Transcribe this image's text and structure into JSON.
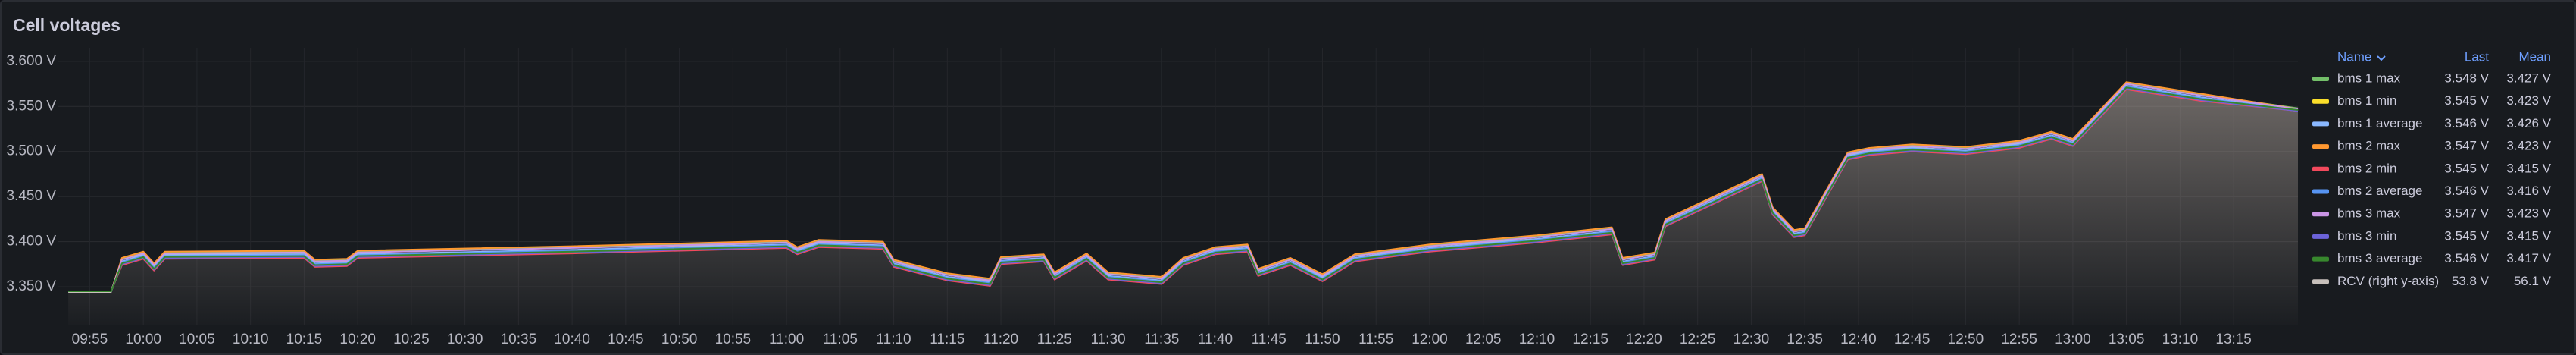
{
  "chart_data": {
    "type": "line",
    "title": "Cell voltages",
    "grid": true,
    "legend": "right",
    "legend_columns": [
      "Name",
      "Last",
      "Mean"
    ],
    "xlim": [
      "09:52",
      "13:21"
    ],
    "xticks": [
      "09:55",
      "10:00",
      "10:05",
      "10:10",
      "10:15",
      "10:20",
      "10:25",
      "10:30",
      "10:35",
      "10:40",
      "10:45",
      "10:50",
      "10:55",
      "11:00",
      "11:05",
      "11:10",
      "11:15",
      "11:20",
      "11:25",
      "11:30",
      "11:35",
      "11:40",
      "11:45",
      "11:50",
      "11:55",
      "12:00",
      "12:05",
      "12:10",
      "12:15",
      "12:20",
      "12:25",
      "12:30",
      "12:35",
      "12:40",
      "12:45",
      "12:50",
      "12:55",
      "13:00",
      "13:05",
      "13:10",
      "13:15"
    ],
    "ylim": [
      3.308,
      3.615
    ],
    "yticks": [
      {
        "value": 3.35,
        "label": "3.350 V"
      },
      {
        "value": 3.4,
        "label": "3.400 V"
      },
      {
        "value": 3.45,
        "label": "3.450 V"
      },
      {
        "value": 3.5,
        "label": "3.500 V"
      },
      {
        "value": 3.55,
        "label": "3.550 V"
      },
      {
        "value": 3.6,
        "label": "3.600 V"
      }
    ],
    "y2lim": [
      59.45,
      52.2
    ],
    "x": [
      "09:53",
      "09:57",
      "09:58",
      "10:00",
      "10:01",
      "10:02",
      "10:15",
      "10:16",
      "10:19",
      "10:20",
      "10:40",
      "11:00",
      "11:01",
      "11:03",
      "11:09",
      "11:10",
      "11:15",
      "11:19",
      "11:20",
      "11:24",
      "11:25",
      "11:28",
      "11:30",
      "11:35",
      "11:37",
      "11:40",
      "11:43",
      "11:44",
      "11:47",
      "11:50",
      "11:53",
      "12:00",
      "12:10",
      "12:17",
      "12:18",
      "12:21",
      "12:22",
      "12:31",
      "12:32",
      "12:34",
      "12:35",
      "12:39",
      "12:41",
      "12:45",
      "12:50",
      "12:55",
      "12:58",
      "13:00",
      "13:05",
      "13:12",
      "13:21"
    ],
    "series": [
      {
        "name": "bms 1 max",
        "color": "#73bf69",
        "last": {
          "value": 3.548,
          "label": "3.548 V"
        },
        "mean": {
          "value": 3.427,
          "label": "3.427 V"
        },
        "values": [
          3.345,
          3.345,
          3.381,
          3.388,
          3.375,
          3.388,
          3.389,
          3.379,
          3.38,
          3.389,
          3.394,
          3.4,
          3.393,
          3.401,
          3.399,
          3.379,
          3.364,
          3.358,
          3.382,
          3.385,
          3.365,
          3.386,
          3.365,
          3.36,
          3.381,
          3.393,
          3.396,
          3.369,
          3.381,
          3.363,
          3.385,
          3.396,
          3.406,
          3.415,
          3.381,
          3.387,
          3.424,
          3.474,
          3.437,
          3.412,
          3.414,
          3.498,
          3.503,
          3.507,
          3.504,
          3.511,
          3.521,
          3.513,
          3.576,
          3.563,
          3.548
        ]
      },
      {
        "name": "bms 1 min",
        "color": "#fade2a",
        "last": {
          "value": 3.545,
          "label": "3.545 V"
        },
        "mean": {
          "value": 3.423,
          "label": "3.423 V"
        },
        "values": [
          3.345,
          3.345,
          3.376,
          3.383,
          3.37,
          3.383,
          3.384,
          3.374,
          3.375,
          3.384,
          3.389,
          3.395,
          3.388,
          3.396,
          3.394,
          3.374,
          3.359,
          3.353,
          3.377,
          3.38,
          3.36,
          3.381,
          3.36,
          3.355,
          3.376,
          3.388,
          3.391,
          3.364,
          3.376,
          3.358,
          3.38,
          3.391,
          3.401,
          3.41,
          3.376,
          3.382,
          3.419,
          3.469,
          3.432,
          3.407,
          3.409,
          3.493,
          3.498,
          3.502,
          3.499,
          3.506,
          3.516,
          3.508,
          3.571,
          3.558,
          3.545
        ]
      },
      {
        "name": "bms 1 average",
        "color": "#8ab8ff",
        "last": {
          "value": 3.546,
          "label": "3.546 V"
        },
        "mean": {
          "value": 3.426,
          "label": "3.426 V"
        },
        "values": [
          3.345,
          3.345,
          3.378,
          3.385,
          3.372,
          3.385,
          3.386,
          3.376,
          3.377,
          3.386,
          3.391,
          3.397,
          3.39,
          3.398,
          3.396,
          3.376,
          3.361,
          3.355,
          3.379,
          3.382,
          3.362,
          3.383,
          3.362,
          3.357,
          3.378,
          3.39,
          3.393,
          3.366,
          3.378,
          3.36,
          3.382,
          3.393,
          3.403,
          3.412,
          3.378,
          3.384,
          3.421,
          3.471,
          3.434,
          3.409,
          3.411,
          3.495,
          3.5,
          3.504,
          3.501,
          3.508,
          3.518,
          3.51,
          3.573,
          3.56,
          3.546
        ]
      },
      {
        "name": "bms 2 max",
        "color": "#ff9830",
        "last": {
          "value": 3.547,
          "label": "3.547 V"
        },
        "mean": {
          "value": 3.423,
          "label": "3.423 V"
        },
        "values": [
          3.345,
          3.345,
          3.382,
          3.389,
          3.376,
          3.389,
          3.39,
          3.38,
          3.381,
          3.39,
          3.395,
          3.401,
          3.394,
          3.402,
          3.4,
          3.38,
          3.365,
          3.359,
          3.383,
          3.386,
          3.366,
          3.387,
          3.366,
          3.361,
          3.382,
          3.394,
          3.397,
          3.37,
          3.382,
          3.364,
          3.386,
          3.397,
          3.407,
          3.416,
          3.382,
          3.388,
          3.425,
          3.475,
          3.438,
          3.413,
          3.415,
          3.499,
          3.504,
          3.508,
          3.505,
          3.512,
          3.522,
          3.514,
          3.577,
          3.564,
          3.547
        ]
      },
      {
        "name": "bms 2 min",
        "color": "#f2495c",
        "last": {
          "value": 3.545,
          "label": "3.545 V"
        },
        "mean": {
          "value": 3.415,
          "label": "3.415 V"
        },
        "values": [
          3.345,
          3.345,
          3.374,
          3.381,
          3.368,
          3.381,
          3.382,
          3.372,
          3.373,
          3.382,
          3.387,
          3.393,
          3.386,
          3.394,
          3.392,
          3.372,
          3.357,
          3.351,
          3.375,
          3.378,
          3.358,
          3.379,
          3.358,
          3.353,
          3.374,
          3.386,
          3.389,
          3.362,
          3.374,
          3.356,
          3.378,
          3.389,
          3.399,
          3.408,
          3.374,
          3.38,
          3.417,
          3.467,
          3.43,
          3.405,
          3.407,
          3.491,
          3.496,
          3.5,
          3.497,
          3.504,
          3.514,
          3.506,
          3.569,
          3.556,
          3.545
        ]
      },
      {
        "name": "bms 2 average",
        "color": "#5794f2",
        "last": {
          "value": 3.546,
          "label": "3.546 V"
        },
        "mean": {
          "value": 3.416,
          "label": "3.416 V"
        },
        "values": [
          3.345,
          3.345,
          3.377,
          3.384,
          3.371,
          3.384,
          3.385,
          3.375,
          3.376,
          3.385,
          3.39,
          3.396,
          3.389,
          3.397,
          3.395,
          3.375,
          3.36,
          3.354,
          3.378,
          3.381,
          3.361,
          3.382,
          3.361,
          3.356,
          3.377,
          3.389,
          3.392,
          3.365,
          3.377,
          3.359,
          3.381,
          3.392,
          3.402,
          3.411,
          3.377,
          3.383,
          3.42,
          3.47,
          3.433,
          3.408,
          3.41,
          3.494,
          3.499,
          3.503,
          3.5,
          3.507,
          3.517,
          3.509,
          3.572,
          3.559,
          3.546
        ]
      },
      {
        "name": "bms 3 max",
        "color": "#ca95e5",
        "last": {
          "value": 3.547,
          "label": "3.547 V"
        },
        "mean": {
          "value": 3.423,
          "label": "3.423 V"
        },
        "values": [
          3.345,
          3.345,
          3.38,
          3.387,
          3.374,
          3.387,
          3.388,
          3.378,
          3.379,
          3.388,
          3.393,
          3.399,
          3.392,
          3.4,
          3.398,
          3.378,
          3.363,
          3.357,
          3.381,
          3.384,
          3.364,
          3.385,
          3.364,
          3.359,
          3.38,
          3.392,
          3.395,
          3.368,
          3.38,
          3.362,
          3.384,
          3.395,
          3.405,
          3.414,
          3.38,
          3.386,
          3.423,
          3.473,
          3.436,
          3.411,
          3.413,
          3.497,
          3.502,
          3.506,
          3.503,
          3.51,
          3.52,
          3.512,
          3.575,
          3.562,
          3.547
        ]
      },
      {
        "name": "bms 3 min",
        "color": "#6c63d9",
        "last": {
          "value": 3.545,
          "label": "3.545 V"
        },
        "mean": {
          "value": 3.415,
          "label": "3.415 V"
        },
        "values": [
          3.345,
          3.345,
          3.375,
          3.382,
          3.369,
          3.382,
          3.383,
          3.373,
          3.374,
          3.383,
          3.388,
          3.394,
          3.387,
          3.395,
          3.393,
          3.373,
          3.358,
          3.352,
          3.376,
          3.379,
          3.359,
          3.38,
          3.359,
          3.354,
          3.375,
          3.387,
          3.39,
          3.363,
          3.375,
          3.357,
          3.379,
          3.39,
          3.4,
          3.409,
          3.375,
          3.381,
          3.418,
          3.468,
          3.431,
          3.406,
          3.408,
          3.492,
          3.497,
          3.501,
          3.498,
          3.505,
          3.515,
          3.507,
          3.57,
          3.557,
          3.545
        ]
      },
      {
        "name": "bms 3 average",
        "color": "#37872d",
        "last": {
          "value": 3.546,
          "label": "3.546 V"
        },
        "mean": {
          "value": 3.417,
          "label": "3.417 V"
        },
        "values": [
          3.345,
          3.345,
          3.376,
          3.383,
          3.37,
          3.383,
          3.384,
          3.374,
          3.375,
          3.384,
          3.389,
          3.395,
          3.388,
          3.396,
          3.394,
          3.374,
          3.359,
          3.353,
          3.377,
          3.38,
          3.36,
          3.381,
          3.36,
          3.355,
          3.376,
          3.388,
          3.391,
          3.364,
          3.376,
          3.358,
          3.38,
          3.391,
          3.401,
          3.41,
          3.376,
          3.382,
          3.419,
          3.469,
          3.432,
          3.407,
          3.409,
          3.493,
          3.498,
          3.502,
          3.499,
          3.506,
          3.516,
          3.508,
          3.571,
          3.558,
          3.546
        ]
      },
      {
        "name": "RCV (right y-axis)",
        "color": "#c7c0bb",
        "axis": "y2",
        "fill": true,
        "last": {
          "value": 53.8,
          "label": "53.8 V"
        },
        "mean": {
          "value": 56.1,
          "label": "56.1 V"
        },
        "values": [
          58.6,
          58.6,
          57.8,
          57.6,
          57.9,
          57.6,
          57.6,
          57.8,
          57.8,
          57.6,
          57.5,
          57.3,
          57.5,
          57.3,
          57.4,
          57.8,
          58.2,
          58.3,
          57.8,
          57.7,
          58.2,
          57.7,
          58.2,
          58.3,
          57.8,
          57.5,
          57.4,
          58.1,
          57.8,
          58.2,
          57.7,
          57.4,
          57.2,
          57.0,
          57.8,
          57.7,
          56.8,
          55.6,
          56.5,
          57.1,
          57.0,
          55.0,
          54.9,
          54.8,
          54.9,
          54.7,
          54.5,
          54.7,
          53.2,
          53.5,
          53.8
        ]
      }
    ]
  }
}
